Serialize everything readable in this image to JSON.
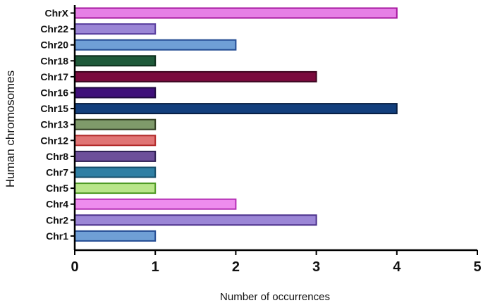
{
  "chart_data": {
    "type": "bar",
    "orientation": "horizontal",
    "title": "",
    "xlabel": "Number of occurrences",
    "ylabel": "Human chromosomes",
    "xlim": [
      0,
      5
    ],
    "xticks": [
      "0",
      "1",
      "2",
      "3",
      "4",
      "5"
    ],
    "grid": false,
    "categories": [
      "ChrX",
      "Chr22",
      "Chr20",
      "Chr18",
      "Chr17",
      "Chr16",
      "Chr15",
      "Chr13",
      "Chr12",
      "Chr8",
      "Chr7",
      "Chr5",
      "Chr4",
      "Chr2",
      "Chr1"
    ],
    "values": [
      4,
      1,
      2,
      1,
      3,
      1,
      4,
      1,
      1,
      1,
      1,
      1,
      2,
      3,
      1
    ],
    "fill_colors": [
      "#e67fe6",
      "#9b86d6",
      "#6f9fd6",
      "#1f5a3a",
      "#7a0a3d",
      "#3f0f7a",
      "#133f7d",
      "#7f9a6a",
      "#e07575",
      "#6d4f9a",
      "#2f7fa4",
      "#b9e68a",
      "#ee8cee",
      "#9b86d6",
      "#6f9fd6"
    ],
    "edge_colors": [
      "#a6179f",
      "#5a3f9e",
      "#244c93",
      "#0e2e1c",
      "#3d0520",
      "#200a40",
      "#081f42",
      "#2f3b20",
      "#b22a2a",
      "#2d1f52",
      "#164d69",
      "#4e9a24",
      "#b42eb4",
      "#4a2f8a",
      "#244c93"
    ]
  }
}
